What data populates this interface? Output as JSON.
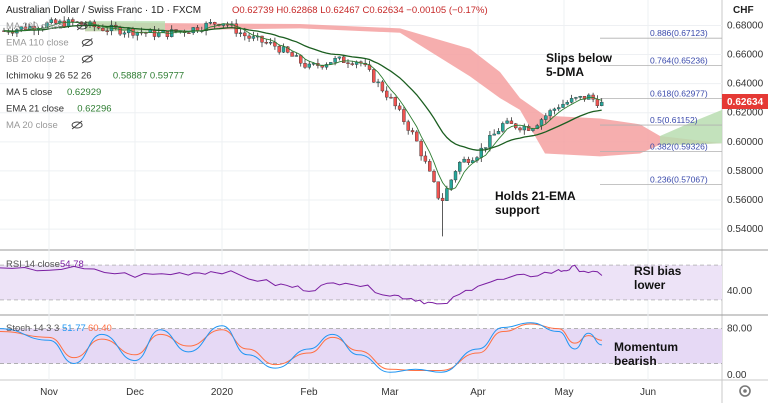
{
  "header": {
    "symbol": "Australian Dollar / Swiss Franc · 1D · FXCM",
    "ohlc": "O0.62739  H0.62868  L0.62467  C0.62634  −0.00105 (−0.17%)",
    "currency": "CHF"
  },
  "legend": [
    {
      "label": "MA 200 close",
      "value": "",
      "color": "#9e9e9e"
    },
    {
      "label": "EMA 110 close",
      "value": "",
      "color": "#9e9e9e"
    },
    {
      "label": "BB 20 close 2",
      "value": "",
      "color": "#9e9e9e"
    },
    {
      "label": "Ichimoku 9 26 52 26",
      "value": "0.58887  0.59777",
      "color": "#2e7d32"
    },
    {
      "label": "MA 5 close",
      "value": "0.62929",
      "color": "#2e7d32"
    },
    {
      "label": "EMA 21 close",
      "value": "0.62296",
      "color": "#2e7d32"
    },
    {
      "label": "MA 20 close",
      "value": "",
      "color": "#9e9e9e"
    }
  ],
  "annotations": {
    "slips": [
      "Slips below",
      "5-DMA"
    ],
    "holds": [
      "Holds 21-EMA",
      "support"
    ],
    "rsi": [
      "RSI bias",
      "lower"
    ],
    "momentum": [
      "Momentum",
      "bearish"
    ]
  },
  "price_label": "0.62634",
  "rsi_header": {
    "label": "RSI 14 close",
    "value": "54.78"
  },
  "stoch_header": {
    "label": "Stoch 14 3 3",
    "k": "51.77",
    "d": "60.40"
  },
  "colors": {
    "up": "#26a69a",
    "down": "#ef5350",
    "ema21": "#1b5e20",
    "ma5": "#2e7d32",
    "cloud_red": "#f4a0a0",
    "cloud_green": "#b9ddb0",
    "rsi": "#7b1fa2",
    "stoch_k": "#2196f3",
    "stoch_d": "#ff7043",
    "band": "#ede3f7"
  },
  "chart_data": {
    "type": "candlestick",
    "x_ticks": [
      "Nov",
      "Dec",
      "2020",
      "Feb",
      "Mar",
      "Apr",
      "May",
      "Jun"
    ],
    "y_ticks": [
      "0.68000",
      "0.66000",
      "0.64000",
      "0.62000",
      "0.60000",
      "0.58000",
      "0.56000",
      "0.54000"
    ],
    "y_range": [
      0.527,
      0.692
    ],
    "fibonacci": [
      {
        "label": "0.886(0.67123)",
        "value": 0.67123
      },
      {
        "label": "0.764(0.65236)",
        "value": 0.65236
      },
      {
        "label": "0.618(0.62977)",
        "value": 0.62977
      },
      {
        "label": "0.5(0.61152)",
        "value": 0.61152
      },
      {
        "label": "0.382(0.59326)",
        "value": 0.59326
      },
      {
        "label": "0.236(0.57067)",
        "value": 0.57067
      }
    ],
    "close_path": [
      [
        "Oct 20",
        0.676
      ],
      [
        "Nov 1",
        0.681
      ],
      [
        "Nov 10",
        0.682
      ],
      [
        "Nov 20",
        0.678
      ],
      [
        "Dec 1",
        0.676
      ],
      [
        "Dec 10",
        0.674
      ],
      [
        "Dec 20",
        0.677
      ],
      [
        "Jan 1",
        0.683
      ],
      [
        "Jan 10",
        0.672
      ],
      [
        "Jan 20",
        0.666
      ],
      [
        "Feb 1",
        0.651
      ],
      [
        "Feb 10",
        0.656
      ],
      [
        "Feb 20",
        0.656
      ],
      [
        "Mar 1",
        0.63
      ],
      [
        "Mar 10",
        0.602
      ],
      [
        "Mar 19",
        0.558
      ],
      [
        "Mar 25",
        0.585
      ],
      [
        "Apr 1",
        0.592
      ],
      [
        "Apr 10",
        0.612
      ],
      [
        "Apr 20",
        0.61
      ],
      [
        "Apr 30",
        0.625
      ],
      [
        "May 5",
        0.629
      ],
      [
        "May 10",
        0.631
      ],
      [
        "May 15",
        0.626
      ]
    ],
    "price_low": {
      "date": "Mar 19",
      "value": 0.535
    },
    "rsi": {
      "y_ticks": [
        "40.00"
      ],
      "band": [
        30,
        70
      ],
      "path": [
        [
          "Oct 20",
          64
        ],
        [
          "Nov 10",
          66
        ],
        [
          "Dec 1",
          58
        ],
        [
          "Dec 20",
          61
        ],
        [
          "Jan 1",
          63
        ],
        [
          "Jan 20",
          48
        ],
        [
          "Feb 1",
          42
        ],
        [
          "Feb 15",
          52
        ],
        [
          "Mar 1",
          36
        ],
        [
          "Mar 10",
          31
        ],
        [
          "Mar 19",
          23
        ],
        [
          "Apr 1",
          48
        ],
        [
          "Apr 15",
          56
        ],
        [
          "Apr 30",
          63
        ],
        [
          "May 5",
          67
        ],
        [
          "May 15",
          58
        ]
      ]
    },
    "stoch": {
      "y_ticks": [
        "80.00",
        "0.00"
      ],
      "band": [
        20,
        80
      ],
      "k_path": [
        [
          "Oct 20",
          80
        ],
        [
          "Nov 1",
          60
        ],
        [
          "Nov 10",
          20
        ],
        [
          "Nov 20",
          70
        ],
        [
          "Dec 1",
          25
        ],
        [
          "Dec 10",
          78
        ],
        [
          "Dec 20",
          40
        ],
        [
          "Jan 1",
          85
        ],
        [
          "Jan 10",
          35
        ],
        [
          "Jan 20",
          12
        ],
        [
          "Feb 1",
          45
        ],
        [
          "Feb 10",
          70
        ],
        [
          "Feb 20",
          35
        ],
        [
          "Mar 1",
          5
        ],
        [
          "Mar 10",
          10
        ],
        [
          "Mar 19",
          5
        ],
        [
          "Apr 1",
          45
        ],
        [
          "Apr 10",
          82
        ],
        [
          "Apr 20",
          90
        ],
        [
          "Apr 30",
          75
        ],
        [
          "May 5",
          45
        ],
        [
          "May 10",
          72
        ],
        [
          "May 15",
          52
        ]
      ],
      "d_path": [
        [
          "Oct 20",
          75
        ],
        [
          "Nov 1",
          65
        ],
        [
          "Nov 10",
          30
        ],
        [
          "Nov 20",
          62
        ],
        [
          "Dec 1",
          35
        ],
        [
          "Dec 10",
          70
        ],
        [
          "Dec 20",
          50
        ],
        [
          "Jan 1",
          78
        ],
        [
          "Jan 10",
          45
        ],
        [
          "Jan 20",
          18
        ],
        [
          "Feb 1",
          38
        ],
        [
          "Feb 10",
          65
        ],
        [
          "Feb 20",
          42
        ],
        [
          "Mar 1",
          10
        ],
        [
          "Mar 10",
          8
        ],
        [
          "Mar 19",
          8
        ],
        [
          "Apr 1",
          38
        ],
        [
          "Apr 10",
          75
        ],
        [
          "Apr 20",
          88
        ],
        [
          "Apr 30",
          80
        ],
        [
          "May 5",
          55
        ],
        [
          "May 10",
          68
        ],
        [
          "May 15",
          60
        ]
      ]
    }
  }
}
